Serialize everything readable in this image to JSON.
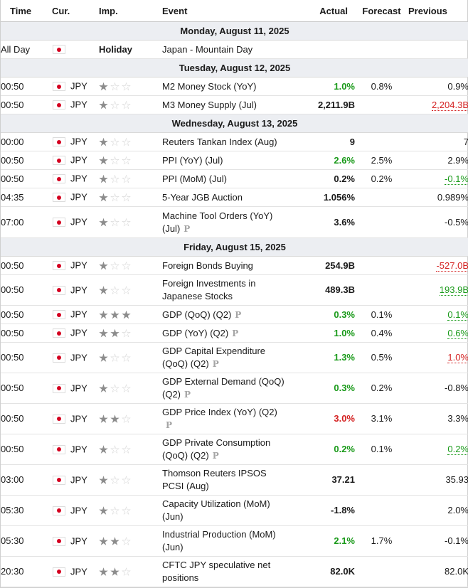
{
  "columns": {
    "time": "Time",
    "cur": "Cur.",
    "imp": "Imp.",
    "event": "Event",
    "actual": "Actual",
    "forecast": "Forecast",
    "previous": "Previous"
  },
  "colors": {
    "positive": "#1a9a1a",
    "negative": "#d42222",
    "date_row_bg": "#eceef2",
    "flag_red": "#d4001f"
  },
  "groups": [
    {
      "date": "Monday, August 11, 2025",
      "rows": [
        {
          "time": "All Day",
          "cur": "",
          "holiday": "Holiday",
          "event": "Japan - Mountain Day",
          "prelim": false,
          "actual": "",
          "actual_color": "",
          "forecast": "",
          "previous": "",
          "previous_color": "",
          "importance": 0,
          "h": 26
        }
      ]
    },
    {
      "date": "Tuesday, August 12, 2025",
      "rows": [
        {
          "time": "00:50",
          "cur": "JPY",
          "importance": 1,
          "event": "M2 Money Stock (YoY)",
          "prelim": false,
          "actual": "1.0%",
          "actual_color": "green",
          "forecast": "0.8%",
          "previous": "0.9%",
          "previous_color": "",
          "h": 26
        },
        {
          "time": "00:50",
          "cur": "JPY",
          "importance": 1,
          "event": "M3 Money Supply (Jul)",
          "prelim": false,
          "actual": "2,211.9B",
          "actual_color": "black",
          "forecast": "",
          "previous": "2,204.3B",
          "previous_color": "red",
          "h": 26
        }
      ]
    },
    {
      "date": "Wednesday, August 13, 2025",
      "rows": [
        {
          "time": "00:00",
          "cur": "JPY",
          "importance": 1,
          "event": "Reuters Tankan Index (Aug)",
          "prelim": false,
          "actual": "9",
          "actual_color": "black",
          "forecast": "",
          "previous": "7",
          "previous_color": "",
          "h": 26
        },
        {
          "time": "00:50",
          "cur": "JPY",
          "importance": 1,
          "event": "PPI (YoY) (Jul)",
          "prelim": false,
          "actual": "2.6%",
          "actual_color": "green",
          "forecast": "2.5%",
          "previous": "2.9%",
          "previous_color": "",
          "h": 26
        },
        {
          "time": "00:50",
          "cur": "JPY",
          "importance": 1,
          "event": "PPI (MoM) (Jul)",
          "prelim": false,
          "actual": "0.2%",
          "actual_color": "black",
          "forecast": "0.2%",
          "previous": "-0.1%",
          "previous_color": "green",
          "h": 26
        },
        {
          "time": "04:35",
          "cur": "JPY",
          "importance": 1,
          "event": "5-Year JGB Auction",
          "prelim": false,
          "actual": "1.056%",
          "actual_color": "black",
          "forecast": "",
          "previous": "0.989%",
          "previous_color": "",
          "h": 26
        },
        {
          "time": "07:00",
          "cur": "JPY",
          "importance": 1,
          "event": "Machine Tool Orders (YoY) (Jul)",
          "prelim": true,
          "actual": "3.6%",
          "actual_color": "black",
          "forecast": "",
          "previous": "-0.5%",
          "previous_color": "",
          "h": 44
        }
      ]
    },
    {
      "date": "Friday, August 15, 2025",
      "rows": [
        {
          "time": "00:50",
          "cur": "JPY",
          "importance": 1,
          "event": "Foreign Bonds Buying",
          "prelim": false,
          "actual": "254.9B",
          "actual_color": "black",
          "forecast": "",
          "previous": "-527.0B",
          "previous_color": "red",
          "h": 26
        },
        {
          "time": "00:50",
          "cur": "JPY",
          "importance": 1,
          "event": "Foreign Investments in Japanese Stocks",
          "prelim": false,
          "actual": "489.3B",
          "actual_color": "black",
          "forecast": "",
          "previous": "193.9B",
          "previous_color": "green",
          "h": 43
        },
        {
          "time": "00:50",
          "cur": "JPY",
          "importance": 3,
          "event": "GDP (QoQ) (Q2)",
          "prelim": true,
          "actual": "0.3%",
          "actual_color": "green",
          "forecast": "0.1%",
          "previous": "0.1%",
          "previous_color": "green",
          "h": 26
        },
        {
          "time": "00:50",
          "cur": "JPY",
          "importance": 2,
          "event": "GDP (YoY) (Q2)",
          "prelim": true,
          "actual": "1.0%",
          "actual_color": "green",
          "forecast": "0.4%",
          "previous": "0.6%",
          "previous_color": "green",
          "h": 26
        },
        {
          "time": "00:50",
          "cur": "JPY",
          "importance": 1,
          "event": "GDP Capital Expenditure (QoQ) (Q2)",
          "prelim": true,
          "actual": "1.3%",
          "actual_color": "green",
          "forecast": "0.5%",
          "previous": "1.0%",
          "previous_color": "red",
          "h": 43
        },
        {
          "time": "00:50",
          "cur": "JPY",
          "importance": 1,
          "event": "GDP External Demand (QoQ) (Q2)",
          "prelim": true,
          "actual": "0.3%",
          "actual_color": "green",
          "forecast": "0.2%",
          "previous": "-0.8%",
          "previous_color": "",
          "h": 43
        },
        {
          "time": "00:50",
          "cur": "JPY",
          "importance": 2,
          "event": "GDP Price Index (YoY) (Q2)",
          "prelim": true,
          "actual": "3.0%",
          "actual_color": "red",
          "forecast": "3.1%",
          "previous": "3.3%",
          "previous_color": "",
          "h": 26
        },
        {
          "time": "00:50",
          "cur": "JPY",
          "importance": 1,
          "event": "GDP Private Consumption (QoQ) (Q2)",
          "prelim": true,
          "actual": "0.2%",
          "actual_color": "green",
          "forecast": "0.1%",
          "previous": "0.2%",
          "previous_color": "green",
          "h": 43
        },
        {
          "time": "03:00",
          "cur": "JPY",
          "importance": 1,
          "event": "Thomson Reuters IPSOS PCSI (Aug)",
          "prelim": false,
          "actual": "37.21",
          "actual_color": "black",
          "forecast": "",
          "previous": "35.93",
          "previous_color": "",
          "h": 43
        },
        {
          "time": "05:30",
          "cur": "JPY",
          "importance": 1,
          "event": "Capacity Utilization (MoM) (Jun)",
          "prelim": false,
          "actual": "-1.8%",
          "actual_color": "black",
          "forecast": "",
          "previous": "2.0%",
          "previous_color": "",
          "h": 26
        },
        {
          "time": "05:30",
          "cur": "JPY",
          "importance": 2,
          "event": "Industrial Production (MoM) (Jun)",
          "prelim": false,
          "actual": "2.1%",
          "actual_color": "green",
          "forecast": "1.7%",
          "previous": "-0.1%",
          "previous_color": "",
          "h": 43
        },
        {
          "time": "20:30",
          "cur": "JPY",
          "importance": 2,
          "event": "CFTC JPY speculative net positions",
          "prelim": false,
          "actual": "82.0K",
          "actual_color": "black",
          "forecast": "",
          "previous": "82.0K",
          "previous_color": "",
          "h": 43
        }
      ]
    }
  ]
}
